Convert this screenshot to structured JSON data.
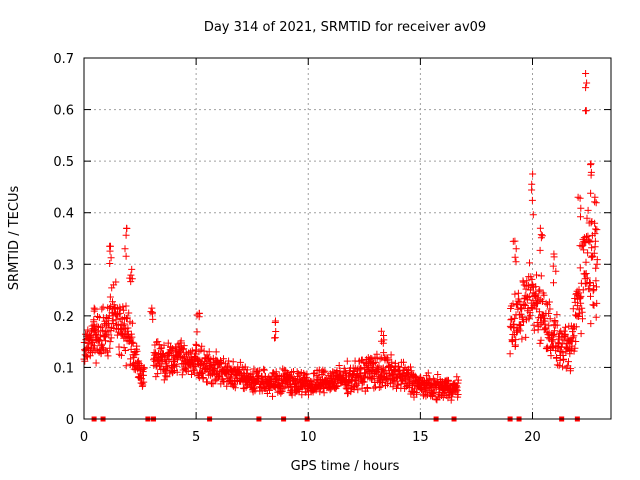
{
  "chart_data": {
    "type": "scatter",
    "title": "Day 314 of 2021, SRMTID for receiver av09",
    "xlabel": "GPS time / hours",
    "ylabel": "SRMTID / TECUs",
    "xlim": [
      0,
      23.5
    ],
    "ylim": [
      0,
      0.7
    ],
    "xticks": [
      0,
      5,
      10,
      15,
      20
    ],
    "xtick_labels": [
      "0",
      "5",
      "10",
      "15",
      "20"
    ],
    "yticks": [
      0,
      0.1,
      0.2,
      0.3,
      0.4,
      0.5,
      0.6,
      0.7
    ],
    "ytick_labels": [
      "0",
      "0.1",
      "0.2",
      "0.3",
      "0.4",
      "0.5",
      "0.6",
      "0.7"
    ],
    "grid": true,
    "marker": "plus",
    "color": "#ff0000",
    "envelope": {
      "x": [
        0,
        0.3,
        0.8,
        1.3,
        1.9,
        2.3,
        2.6,
        3.0,
        3.6,
        4.3,
        5.0,
        5.6,
        6.3,
        7.0,
        8.0,
        9.0,
        10.0,
        11.0,
        12.0,
        12.8,
        13.5,
        14.3,
        15.0,
        15.6,
        16.2,
        16.7,
        19.0,
        19.5,
        20.0,
        20.3,
        20.7,
        21.2,
        21.7,
        22.0,
        22.4,
        22.8
      ],
      "y": [
        0.13,
        0.15,
        0.16,
        0.2,
        0.17,
        0.13,
        0.08,
        0.12,
        0.11,
        0.12,
        0.11,
        0.1,
        0.09,
        0.08,
        0.07,
        0.075,
        0.065,
        0.075,
        0.08,
        0.095,
        0.09,
        0.08,
        0.065,
        0.06,
        0.06,
        0.06,
        0.17,
        0.21,
        0.24,
        0.22,
        0.18,
        0.14,
        0.13,
        0.22,
        0.33,
        0.3
      ],
      "spread": [
        0.06,
        0.06,
        0.07,
        0.09,
        0.08,
        0.06,
        0.03,
        0.04,
        0.05,
        0.05,
        0.05,
        0.05,
        0.04,
        0.035,
        0.03,
        0.035,
        0.03,
        0.035,
        0.04,
        0.05,
        0.05,
        0.045,
        0.035,
        0.03,
        0.03,
        0.03,
        0.07,
        0.09,
        0.11,
        0.1,
        0.08,
        0.06,
        0.06,
        0.12,
        0.17,
        0.15
      ]
    },
    "segments": [
      [
        0.0,
        2.7
      ],
      [
        3.1,
        16.7
      ],
      [
        19.0,
        22.9
      ]
    ],
    "sample_step_hours": 0.012,
    "peaks": [
      {
        "x": 0.5,
        "y": 0.215
      },
      {
        "x": 1.2,
        "y": 0.335
      },
      {
        "x": 1.9,
        "y": 0.37
      },
      {
        "x": 2.1,
        "y": 0.29
      },
      {
        "x": 3.0,
        "y": 0.215
      },
      {
        "x": 5.1,
        "y": 0.205
      },
      {
        "x": 8.5,
        "y": 0.19
      },
      {
        "x": 13.3,
        "y": 0.17
      },
      {
        "x": 19.2,
        "y": 0.345
      },
      {
        "x": 20.0,
        "y": 0.475
      },
      {
        "x": 20.4,
        "y": 0.37
      },
      {
        "x": 21.0,
        "y": 0.32
      },
      {
        "x": 22.1,
        "y": 0.43
      },
      {
        "x": 22.4,
        "y": 0.67
      },
      {
        "x": 22.6,
        "y": 0.495
      },
      {
        "x": 22.8,
        "y": 0.43
      }
    ],
    "zero_markers_x": [
      0.45,
      0.85,
      2.85,
      3.1,
      5.6,
      7.8,
      8.9,
      9.95,
      15.7,
      16.5,
      19.0,
      19.4,
      21.3,
      22.0
    ]
  }
}
